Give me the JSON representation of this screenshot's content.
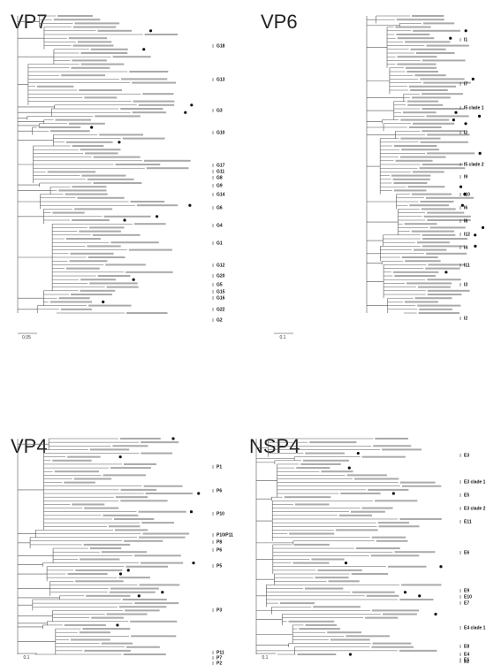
{
  "panels": [
    {
      "title": "VP7",
      "scale": "0.05",
      "clades": [
        "G18",
        "G13",
        "G3",
        "G10",
        "G17",
        "G11",
        "G8",
        "G9",
        "G14",
        "G6",
        "G4",
        "G1",
        "G12",
        "G20",
        "G5",
        "G15",
        "G16",
        "G22",
        "G2"
      ]
    },
    {
      "title": "VP6",
      "scale": "0.1",
      "clades": [
        "I1",
        "I7",
        "I5 clade 1",
        "I2",
        "I5 clade 2",
        "I9",
        "I10",
        "I6",
        "I8",
        "I12",
        "I4",
        "I11",
        "I3",
        "I2"
      ]
    },
    {
      "title": "VP4",
      "scale": "0.1",
      "clades": [
        "P1",
        "P6",
        "P10",
        "P10/P11",
        "P8",
        "P6",
        "P5",
        "P3",
        "P11",
        "P7",
        "P2"
      ]
    },
    {
      "title": "NSP4",
      "scale": "0.1",
      "clades": [
        "E3",
        "E3 clade 1",
        "E5",
        "E3 clade 2",
        "E11",
        "E6",
        "E9",
        "E10",
        "E7",
        "E4 clade 1",
        "E8",
        "E4",
        "E1",
        "E2"
      ]
    }
  ]
}
